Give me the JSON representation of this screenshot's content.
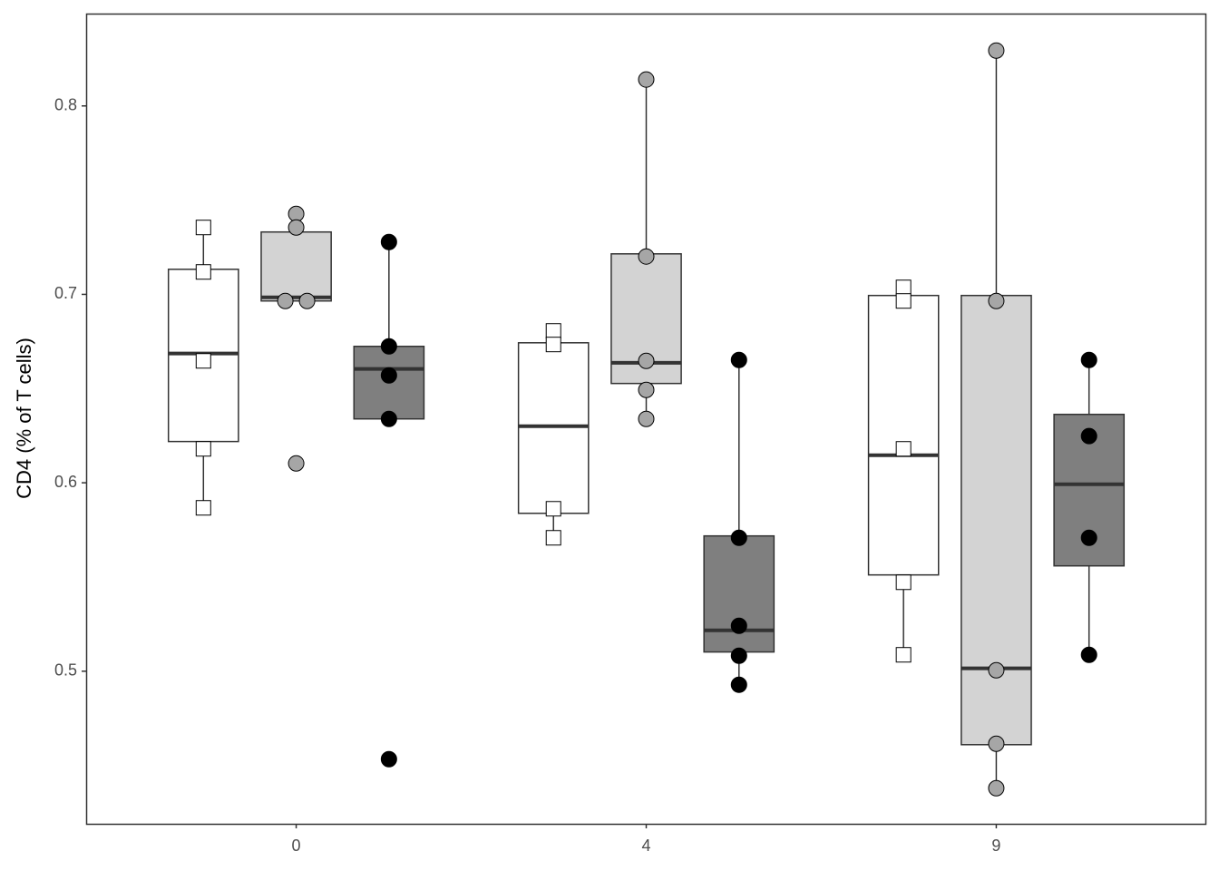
{
  "chart_data": {
    "type": "box",
    "y_label": "CD4 (% of T cells)",
    "categories": [
      "0",
      "4",
      "9"
    ],
    "ylim": [
      0.419,
      0.849
    ],
    "yticks": [
      0.5,
      0.6,
      0.7,
      0.8
    ],
    "grid": false,
    "series": [
      {
        "box_fill": "#ffffff",
        "color": "#ffffff",
        "marker": "square",
        "boxes": [
          {
            "whislo": 0.5867,
            "q1": 0.6219,
            "med": 0.6686,
            "q3": 0.7133,
            "whishi": 0.7355,
            "points": [
              0.7355,
              0.7119,
              0.6647,
              0.618,
              0.5867
            ]
          },
          {
            "whislo": 0.5708,
            "q1": 0.5838,
            "med": 0.63,
            "q3": 0.6743,
            "whishi": 0.6806,
            "points": [
              0.6806,
              0.6734,
              0.5862,
              0.5708
            ]
          },
          {
            "whislo": 0.5087,
            "q1": 0.5511,
            "med": 0.6146,
            "q3": 0.6994,
            "whishi": 0.7037,
            "points": [
              0.7037,
              0.6965,
              0.618,
              0.5472,
              0.5087
            ]
          }
        ]
      },
      {
        "box_fill": "#d3d3d3",
        "color": "#a6a6a6",
        "marker": "circle",
        "boxes": [
          {
            "whislo": 0.6965,
            "q1": 0.6965,
            "med": 0.6984,
            "q3": 0.7331,
            "whishi": 0.7427,
            "points": [
              0.7427,
              0.7355,
              0.6965,
              0.6965,
              0.6103
            ]
          },
          {
            "whislo": 0.6339,
            "q1": 0.6527,
            "med": 0.6637,
            "q3": 0.7215,
            "whishi": 0.814,
            "points": [
              0.814,
              0.7201,
              0.6647,
              0.6493,
              0.6339
            ]
          },
          {
            "whislo": 0.4379,
            "q1": 0.461,
            "med": 0.5015,
            "q3": 0.6994,
            "whishi": 0.8294,
            "points": [
              0.8294,
              0.6965,
              0.5005,
              0.4615,
              0.4379
            ]
          }
        ]
      },
      {
        "box_fill": "#7f7f7f",
        "color": "#000000",
        "marker": "circle",
        "boxes": [
          {
            "whislo": 0.6339,
            "q1": 0.6339,
            "med": 0.6604,
            "q3": 0.6724,
            "whishi": 0.7278,
            "points": [
              0.7278,
              0.6724,
              0.657,
              0.6339,
              0.4533
            ]
          },
          {
            "whislo": 0.4928,
            "q1": 0.5102,
            "med": 0.5217,
            "q3": 0.5718,
            "whishi": 0.6652,
            "points": [
              0.6652,
              0.5708,
              0.5241,
              0.5082,
              0.4928
            ]
          },
          {
            "whislo": 0.5087,
            "q1": 0.5559,
            "med": 0.5992,
            "q3": 0.6363,
            "whishi": 0.6652,
            "points": [
              0.6652,
              0.6248,
              0.5708,
              0.5087
            ]
          }
        ]
      }
    ]
  }
}
